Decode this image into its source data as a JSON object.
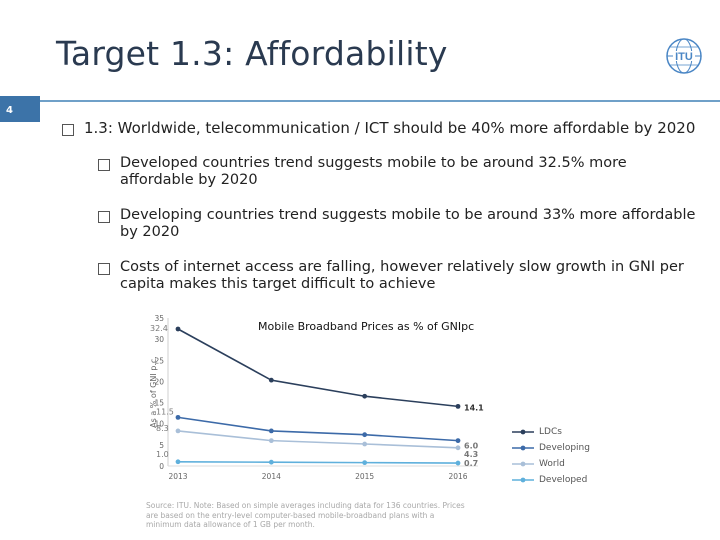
{
  "slide": {
    "title": "Target 1.3: Affordability",
    "number": "4",
    "logo_text": "ITU"
  },
  "bullets": [
    {
      "text": "1.3: Worldwide, telecommunication / ICT should be 40% more affordable by 2020"
    },
    {
      "text": "Developed countries trend suggests mobile to be around 32.5% more affordable by 2020"
    },
    {
      "text": "Developing countries trend suggests mobile to be around 33% more affordable by 2020"
    },
    {
      "text": "Costs of internet access are falling, however relatively slow growth in GNI per capita makes this target difficult to achieve"
    }
  ],
  "chart_data": {
    "type": "line",
    "title": "Mobile Broadband Prices as % of GNIpc",
    "ylabel": "As a % of GNI p.c.",
    "xlabel": "",
    "x": [
      "2013",
      "2014",
      "2015",
      "2016"
    ],
    "ylim": [
      0,
      35
    ],
    "yticks": [
      0,
      5,
      10,
      15,
      20,
      25,
      30,
      35
    ],
    "legend_position": "right",
    "series": [
      {
        "name": "LDCs",
        "values": [
          32.4,
          20.3,
          16.5,
          14.1
        ],
        "color": "#2b3f5c"
      },
      {
        "name": "Developing",
        "values": [
          11.5,
          8.3,
          7.4,
          6.0
        ],
        "color": "#3c6aa8"
      },
      {
        "name": "World",
        "values": [
          8.3,
          6.0,
          5.2,
          4.3
        ],
        "color": "#a9bfd8"
      },
      {
        "name": "Developed",
        "values": [
          1.0,
          0.9,
          0.8,
          0.7
        ],
        "color": "#5fb0dc"
      }
    ],
    "data_labels": [
      {
        "series": "LDCs",
        "x": "2013",
        "text": "32.4"
      },
      {
        "series": "LDCs",
        "x": "2016",
        "text": "14.1"
      },
      {
        "series": "Developing",
        "x": "2013",
        "text": "11.5"
      },
      {
        "series": "Developing",
        "x": "2016",
        "text": "6.0"
      },
      {
        "series": "World",
        "x": "2013",
        "text": "8.3"
      },
      {
        "series": "World",
        "x": "2016",
        "text": "4.3"
      },
      {
        "series": "Developed",
        "x": "2013",
        "text": "1.0"
      },
      {
        "series": "Developed",
        "x": "2016",
        "text": "0.7"
      }
    ],
    "source": "Source: ITU. Note: Based on simple averages including data for 136 countries. Prices are based on the entry-level computer-based mobile-broadband plans with a minimum data allowance of 1 GB per month."
  }
}
